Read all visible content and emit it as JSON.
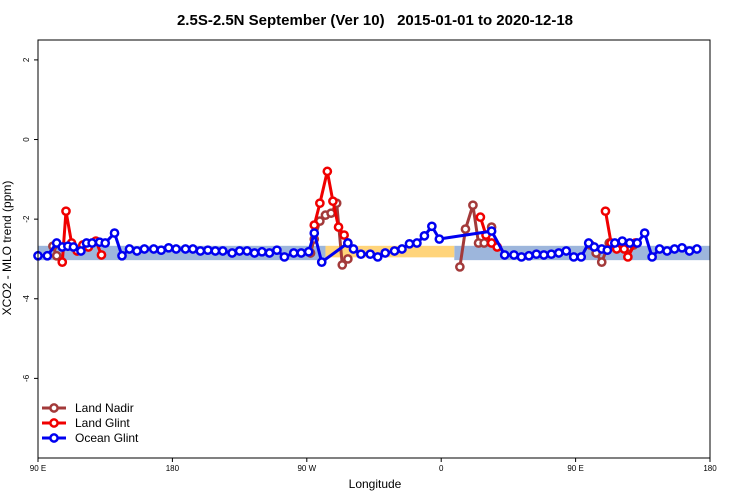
{
  "chart_data": {
    "type": "line",
    "title": "2.5S-2.5N September (Ver 10)   2015-01-01 to 2020-12-18",
    "xlabel": "Longitude",
    "ylabel": "XCO2 - MLO trend (ppm)",
    "xlim": [
      0,
      360
    ],
    "ylim": [
      -8,
      2.5
    ],
    "xticks": [
      {
        "value": 0,
        "label": "90 E"
      },
      {
        "value": 72,
        "label": "180"
      },
      {
        "value": 144,
        "label": "90 W"
      },
      {
        "value": 216,
        "label": "0"
      },
      {
        "value": 288,
        "label": "90 E"
      },
      {
        "value": 360,
        "label": "180"
      }
    ],
    "yticks": [
      {
        "value": 2,
        "label": "2"
      },
      {
        "value": 0,
        "label": "0"
      },
      {
        "value": -2,
        "label": "-2"
      },
      {
        "value": -4,
        "label": "-4"
      },
      {
        "value": -6,
        "label": "-6"
      }
    ],
    "legend_position": "bottom-left",
    "bands": [
      {
        "name": "ocean",
        "color": "#9db6dc",
        "y_range": [
          -3.03,
          -2.67
        ],
        "x_ranges": [
          [
            0,
            154
          ],
          [
            223,
            360
          ]
        ]
      },
      {
        "name": "land",
        "color": "#ffd47a",
        "y_range": [
          -2.96,
          -2.67
        ],
        "x_ranges": [
          [
            154,
            223
          ]
        ]
      }
    ],
    "series": [
      {
        "name": "Land Nadir",
        "color": "#a33a3a",
        "segments": [
          [
            [
              8,
              -2.68
            ],
            [
              10,
              -2.92
            ]
          ],
          [
            [
              146,
              -2.85
            ],
            [
              148,
              -2.5
            ],
            [
              151,
              -2.05
            ],
            [
              154,
              -1.9
            ],
            [
              157,
              -1.85
            ],
            [
              160,
              -1.6
            ],
            [
              163,
              -3.15
            ],
            [
              166,
              -3.0
            ]
          ],
          [
            [
              226,
              -3.2
            ],
            [
              229,
              -2.25
            ],
            [
              233,
              -1.65
            ],
            [
              236,
              -2.6
            ],
            [
              239,
              -2.6
            ],
            [
              243,
              -2.2
            ]
          ],
          [
            [
              296,
              -2.65
            ],
            [
              299,
              -2.85
            ],
            [
              302,
              -3.08
            ],
            [
              306,
              -2.6
            ],
            [
              309,
              -2.7
            ],
            [
              313,
              -2.6
            ],
            [
              316,
              -2.72
            ],
            [
              319,
              -2.65
            ]
          ]
        ]
      },
      {
        "name": "Land Glint",
        "color": "#f00000",
        "segments": [
          [
            [
              13,
              -3.08
            ],
            [
              15,
              -1.8
            ],
            [
              18,
              -2.6
            ],
            [
              21,
              -2.8
            ],
            [
              24,
              -2.65
            ],
            [
              27,
              -2.7
            ],
            [
              31,
              -2.55
            ],
            [
              34,
              -2.9
            ]
          ],
          [
            [
              148,
              -2.15
            ],
            [
              151,
              -1.6
            ],
            [
              155,
              -0.8
            ],
            [
              158,
              -1.55
            ],
            [
              161,
              -2.2
            ],
            [
              164,
              -2.4
            ],
            [
              166,
              -2.6
            ]
          ],
          [
            [
              237,
              -1.95
            ],
            [
              240,
              -2.4
            ],
            [
              243,
              -2.6
            ],
            [
              246,
              -2.7
            ]
          ],
          [
            [
              304,
              -1.8
            ],
            [
              307,
              -2.6
            ],
            [
              310,
              -2.75
            ],
            [
              314,
              -2.75
            ],
            [
              316,
              -2.95
            ],
            [
              320,
              -2.6
            ]
          ]
        ]
      },
      {
        "name": "Ocean Glint",
        "color": "#0000f0",
        "segments": [
          [
            [
              0,
              -2.92
            ],
            [
              5,
              -2.92
            ],
            [
              10,
              -2.6
            ],
            [
              13,
              -2.7
            ],
            [
              16,
              -2.68
            ],
            [
              19,
              -2.7
            ],
            [
              23,
              -2.8
            ],
            [
              26,
              -2.6
            ],
            [
              29,
              -2.6
            ],
            [
              33,
              -2.58
            ],
            [
              36,
              -2.6
            ],
            [
              41,
              -2.35
            ],
            [
              45,
              -2.92
            ],
            [
              49,
              -2.75
            ],
            [
              53,
              -2.8
            ],
            [
              57,
              -2.75
            ],
            [
              62,
              -2.75
            ],
            [
              66,
              -2.78
            ],
            [
              70,
              -2.72
            ],
            [
              74,
              -2.75
            ],
            [
              79,
              -2.75
            ],
            [
              83,
              -2.75
            ],
            [
              87,
              -2.8
            ],
            [
              91,
              -2.78
            ],
            [
              95,
              -2.8
            ],
            [
              99,
              -2.8
            ],
            [
              104,
              -2.85
            ],
            [
              108,
              -2.8
            ],
            [
              112,
              -2.8
            ],
            [
              116,
              -2.85
            ],
            [
              120,
              -2.82
            ],
            [
              124,
              -2.85
            ],
            [
              128,
              -2.78
            ],
            [
              132,
              -2.95
            ],
            [
              137,
              -2.85
            ],
            [
              141,
              -2.85
            ],
            [
              145,
              -2.82
            ],
            [
              148,
              -2.35
            ],
            [
              152,
              -3.08
            ],
            [
              166,
              -2.6
            ],
            [
              169,
              -2.75
            ],
            [
              173,
              -2.88
            ],
            [
              178,
              -2.88
            ],
            [
              182,
              -2.95
            ],
            [
              186,
              -2.85
            ],
            [
              191,
              -2.8
            ],
            [
              195,
              -2.75
            ],
            [
              199,
              -2.62
            ],
            [
              203,
              -2.6
            ],
            [
              207,
              -2.42
            ],
            [
              211,
              -2.18
            ],
            [
              215,
              -2.5
            ],
            [
              243,
              -2.3
            ],
            [
              250,
              -2.9
            ],
            [
              255,
              -2.9
            ],
            [
              259,
              -2.95
            ],
            [
              263,
              -2.92
            ],
            [
              267,
              -2.88
            ],
            [
              271,
              -2.9
            ],
            [
              275,
              -2.88
            ],
            [
              279,
              -2.85
            ],
            [
              283,
              -2.8
            ],
            [
              287,
              -2.95
            ],
            [
              291,
              -2.95
            ],
            [
              295,
              -2.6
            ],
            [
              298,
              -2.7
            ],
            [
              302,
              -2.75
            ],
            [
              305,
              -2.78
            ],
            [
              309,
              -2.6
            ],
            [
              313,
              -2.55
            ],
            [
              317,
              -2.6
            ],
            [
              321,
              -2.6
            ],
            [
              325,
              -2.35
            ],
            [
              329,
              -2.95
            ],
            [
              333,
              -2.75
            ],
            [
              337,
              -2.8
            ],
            [
              341,
              -2.75
            ],
            [
              345,
              -2.72
            ],
            [
              349,
              -2.8
            ],
            [
              353,
              -2.75
            ]
          ]
        ]
      }
    ]
  }
}
